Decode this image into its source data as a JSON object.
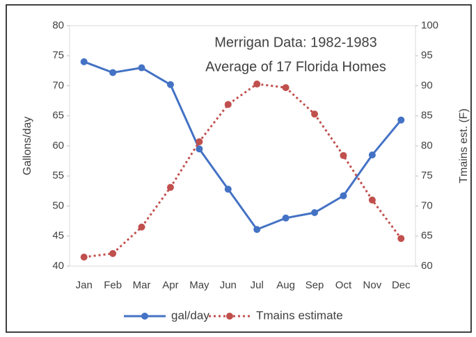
{
  "chart_data": {
    "type": "line",
    "title": [
      "Merrigan Data: 1982-1983",
      "Average of 17 Florida Homes"
    ],
    "ylabel": "Gallons/day",
    "y2label": "Tmains est. (F)",
    "categories": [
      "Jan",
      "Feb",
      "Mar",
      "Apr",
      "May",
      "Jun",
      "Jul",
      "Aug",
      "Sep",
      "Oct",
      "Nov",
      "Dec"
    ],
    "series": [
      {
        "name": "gal/day",
        "color": "#4472c4",
        "style": "solid",
        "values": [
          74.0,
          72.2,
          73.0,
          70.2,
          59.5,
          52.8,
          46.1,
          48.0,
          48.9,
          51.7,
          58.5,
          64.3
        ]
      },
      {
        "name": "Tmains estimate",
        "color": "#c0504d",
        "style": "dotted",
        "axis": "y2",
        "values": [
          61.5,
          62.1,
          66.5,
          73.1,
          80.7,
          86.9,
          90.3,
          89.7,
          85.3,
          78.4,
          71.0,
          64.6
        ]
      }
    ],
    "ylim": [
      40,
      80
    ],
    "yticks": [
      40,
      45,
      50,
      55,
      60,
      65,
      70,
      75,
      80
    ],
    "y2lim": [
      60,
      100
    ],
    "y2ticks": [
      60,
      65,
      70,
      75,
      80,
      85,
      90,
      95,
      100
    ],
    "legend": "bottom"
  }
}
